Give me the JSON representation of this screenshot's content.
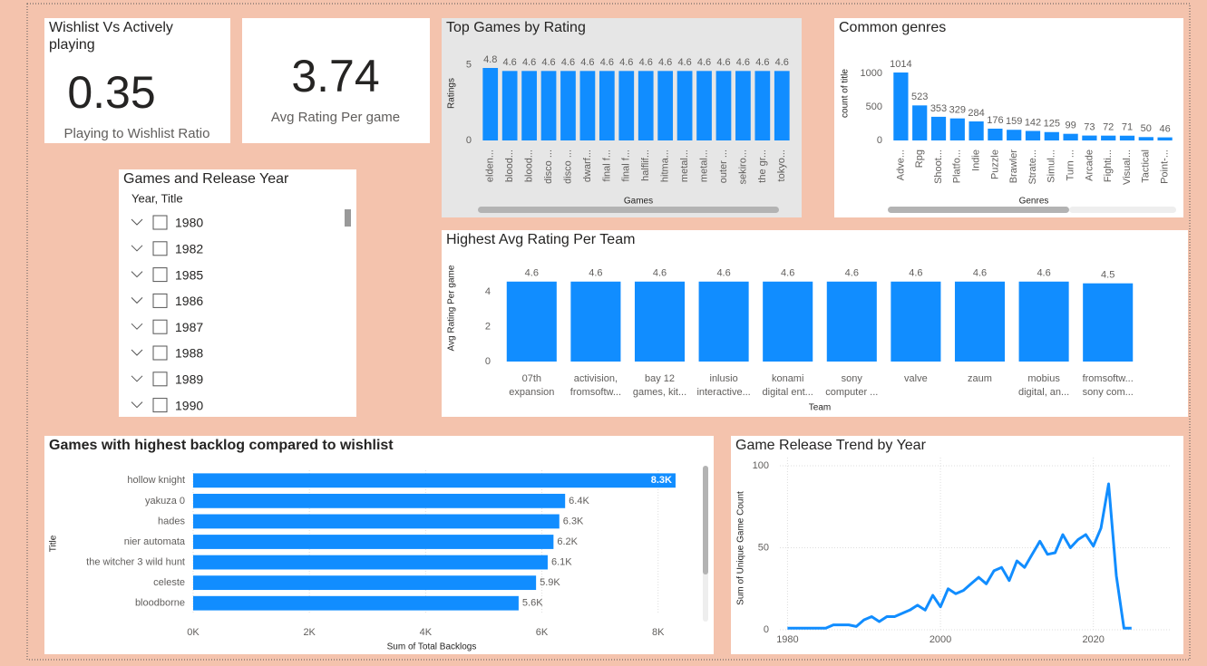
{
  "cards": [
    {
      "title": "Wishlist Vs Actively playing",
      "value": 0.35,
      "label": "Playing to Wishlist Ratio"
    },
    {
      "value": 3.74,
      "label": "Avg Rating Per game"
    }
  ],
  "slicer": {
    "title": "Games and Release Year",
    "header": "Year, Title",
    "items": [
      "1980",
      "1982",
      "1985",
      "1986",
      "1987",
      "1988",
      "1989",
      "1990"
    ]
  },
  "chart_data": [
    {
      "type": "bar",
      "title": "Top Games by Rating",
      "x_label": "Games",
      "y_label": "Ratings",
      "categories": [
        "elden...",
        "blood...",
        "blood...",
        "disco ...",
        "disco ...",
        "dwarf...",
        "final f...",
        "final f...",
        "halflif...",
        "hitma...",
        "metal...",
        "metal...",
        "outer ...",
        "sekiro...",
        "the gr...",
        "tokyo..."
      ],
      "values": [
        4.8,
        4.6,
        4.6,
        4.6,
        4.6,
        4.6,
        4.6,
        4.6,
        4.6,
        4.6,
        4.6,
        4.6,
        4.6,
        4.6,
        4.6,
        4.6
      ],
      "color": "#118dff",
      "ylim": [
        0,
        6.3
      ],
      "yticks": [
        0,
        5
      ],
      "grid": false
    },
    {
      "type": "bar",
      "title": "Common genres",
      "x_label": "Genres",
      "y_label": "count of title",
      "categories": [
        "Adve...",
        "Rpg",
        "Shoot...",
        "Platfo...",
        "Indie",
        "Puzzle",
        "Brawler",
        "Strate...",
        "Simul...",
        "Turn ...",
        "Arcade",
        "Fighti...",
        "Visual...",
        "Tactical",
        "Point-..."
      ],
      "values": [
        1014,
        523,
        353,
        329,
        284,
        176,
        159,
        142,
        125,
        99,
        73,
        72,
        71,
        50,
        46
      ],
      "color": "#118dff",
      "ylim": [
        0,
        1420
      ],
      "yticks": [
        0,
        500,
        1000
      ],
      "grid": false
    },
    {
      "type": "bar",
      "title": "Highest Avg Rating Per Team",
      "x_label": "Team",
      "y_label": "Avg Rating Per game",
      "categories": [
        "07th\nexpansion",
        "activision,\nfromsoftw...",
        "bay 12\ngames, kit...",
        "inlusio\ninteractive...",
        "konami\ndigital ent...",
        "sony\ncomputer ...",
        "valve",
        "zaum",
        "mobius\ndigital, an...",
        "fromsoftw...\nsony com..."
      ],
      "values": [
        4.6,
        4.6,
        4.6,
        4.6,
        4.6,
        4.6,
        4.6,
        4.6,
        4.6,
        4.5
      ],
      "color": "#118dff",
      "ylim": [
        0,
        6.1
      ],
      "yticks": [
        0,
        2,
        4
      ],
      "grid": false
    },
    {
      "type": "hbar",
      "title": "Games with highest backlog compared to wishlist",
      "x_label": "Sum of Total Backlogs",
      "y_label": "Title",
      "categories": [
        "hollow knight",
        "yakuza 0",
        "hades",
        "nier automata",
        "the witcher 3 wild hunt",
        "celeste",
        "bloodborne"
      ],
      "values": [
        8300,
        6400,
        6300,
        6200,
        6100,
        5900,
        5600
      ],
      "value_labels": [
        "8.3K",
        "6.4K",
        "6.3K",
        "6.2K",
        "6.1K",
        "5.9K",
        "5.6K"
      ],
      "color": "#118dff",
      "xlim": [
        0,
        8800
      ],
      "xticks": [
        {
          "value": 0,
          "label": "0K"
        },
        {
          "value": 2000,
          "label": "2K"
        },
        {
          "value": 4000,
          "label": "4K"
        },
        {
          "value": 6000,
          "label": "6K"
        },
        {
          "value": 8000,
          "label": "8K"
        }
      ],
      "grid": true
    },
    {
      "type": "line",
      "title": "Game Release Trend by Year",
      "y_label": "Sum of Unique Game Count",
      "x": [
        1980,
        1981,
        1982,
        1983,
        1984,
        1985,
        1986,
        1987,
        1988,
        1989,
        1990,
        1991,
        1992,
        1993,
        1994,
        1995,
        1996,
        1997,
        1998,
        1999,
        2000,
        2001,
        2002,
        2003,
        2004,
        2005,
        2006,
        2007,
        2008,
        2009,
        2010,
        2011,
        2012,
        2013,
        2014,
        2015,
        2016,
        2017,
        2018,
        2019,
        2020,
        2021,
        2022,
        2023,
        2024,
        2025
      ],
      "values": [
        1,
        1,
        1,
        1,
        1,
        1,
        3,
        3,
        3,
        2,
        6,
        8,
        5,
        8,
        8,
        10,
        12,
        15,
        12,
        21,
        14,
        25,
        22,
        24,
        28,
        32,
        28,
        36,
        38,
        30,
        42,
        38,
        46,
        54,
        46,
        47,
        58,
        50,
        55,
        58,
        51,
        62,
        89,
        33,
        1,
        1
      ],
      "color": "#118dff",
      "xlim": [
        1979,
        2030
      ],
      "xticks": [
        1980,
        2000,
        2020
      ],
      "ylim": [
        0,
        105
      ],
      "yticks": [
        0,
        50,
        100
      ],
      "grid": true
    }
  ]
}
